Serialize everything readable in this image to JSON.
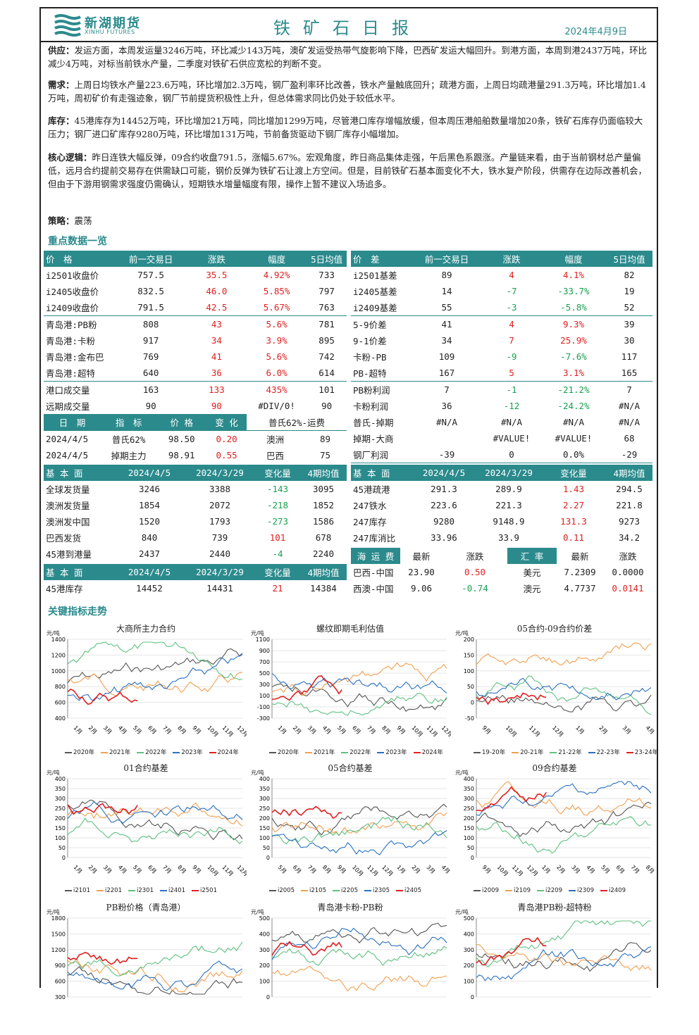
{
  "header": {
    "logo_cn": "新湖期货",
    "logo_en": "XINHU FUTURES",
    "title": "铁矿石日报",
    "date": "2024年4月9日"
  },
  "text": {
    "supply_label": "供应：",
    "supply": "发运方面，本周发运量3246万吨，环比减少143万吨，澳矿发运受热带气旋影响下降，巴西矿发运大幅回升。到港方面，本周到港2437万吨，环比减少4万吨，对标当前铁水产量，二季度对铁矿石供应宽松的判断不变。",
    "demand_label": "需求：",
    "demand": "上周日均铁水产量223.6万吨，环比增加2.3万吨，钢厂盈利率环比改善，铁水产量触底回升；疏港方面，上周日均疏港量291.3万吨，环比增加1.4万吨，周初矿价有走强迹象，钢厂节前提货积极性上升，但总体需求同比仍处于较低水平。",
    "stock_label": "库存：",
    "stock": "45港库存为14452万吨，环比增加21万吨，同比增加1299万吨，尽管港口库存增幅放缓，但本周压港船舶数量增加20条，铁矿石库存仍面临较大压力；钢厂进口矿库存9280万吨，环比增加131万吨，节前备货驱动下钢厂库存小幅增加。",
    "logic_label": "核心逻辑：",
    "logic": "昨日连铁大幅反弹，09合约收盘791.5，涨幅5.67%。宏观角度，昨日商品集体走强，午后黑色系跟涨。产量链来看，由于当前钢材总产量偏低，远月合约提前交易存在供需缺口可能，钢价反弹为铁矿石让渡上方空间。但是，目前铁矿石基本面变化不大，铁水复产阶段，供需存在边际改善机会，但由于下游用钢需求强度仍需确认，短期铁水增量幅度有限，操作上暂不建议入场追多。",
    "strategy_label": "策略：",
    "strategy": "震荡",
    "sec_data": "重点数据一览",
    "sec_chart": "关键指标走势"
  },
  "price_table": {
    "header": [
      "价　格",
      "前一交易日",
      "涨跌",
      "幅度",
      "5日均值"
    ],
    "rows": [
      [
        "i2501收盘价",
        "757.5",
        "35.5",
        "4.92%",
        "733"
      ],
      [
        "i2405收盘价",
        "832.5",
        "46.0",
        "5.85%",
        "797"
      ],
      [
        "i2409收盘价",
        "791.5",
        "42.5",
        "5.67%",
        "763"
      ],
      [
        "青岛港:PB粉",
        "808",
        "43",
        "5.6%",
        "781"
      ],
      [
        "青岛港:卡粉",
        "917",
        "34",
        "3.9%",
        "895"
      ],
      [
        "青岛港:金布巴",
        "769",
        "41",
        "5.6%",
        "742"
      ],
      [
        "青岛港:超特",
        "640",
        "36",
        "6.0%",
        "614"
      ],
      [
        "港口成交量",
        "163",
        "133",
        "435%",
        "101"
      ],
      [
        "远期成交量",
        "90",
        "90",
        "#DIV/0!",
        "90"
      ]
    ]
  },
  "spread_table": {
    "header": [
      "价　差",
      "前一交易日",
      "涨跌",
      "幅度",
      "5日均值"
    ],
    "rows": [
      [
        "i2501基差",
        "89",
        "4",
        "4.1%",
        "82"
      ],
      [
        "i2405基差",
        "14",
        "-7",
        "-33.7%",
        "19"
      ],
      [
        "i2409基差",
        "55",
        "-3",
        "-5.8%",
        "52"
      ],
      [
        "5-9价差",
        "41",
        "4",
        "9.3%",
        "39"
      ],
      [
        "9-1价差",
        "34",
        "7",
        "25.9%",
        "30"
      ],
      [
        "卡粉-PB",
        "109",
        "-9",
        "-7.6%",
        "117"
      ],
      [
        "PB-超特",
        "167",
        "5",
        "3.1%",
        "165"
      ],
      [
        "PB粉利润",
        "7",
        "-1",
        "-21.2%",
        "7"
      ],
      [
        "卡粉利润",
        "36",
        "-12",
        "-24.2%",
        "#N/A"
      ]
    ]
  },
  "index_table": {
    "header": [
      "日　期",
      "指　标",
      "价 格",
      "变 化",
      "普氏62%-运费"
    ],
    "rows": [
      [
        "2024/4/5",
        "普氏62%",
        "98.50",
        "0.20",
        "澳洲",
        "89"
      ],
      [
        "2024/4/5",
        "掉期主力",
        "98.91",
        "0.55",
        "巴西",
        "75"
      ]
    ]
  },
  "misc_rows": [
    [
      "普氏-掉期",
      "#N/A",
      "#N/A",
      "#N/A",
      "#N/A"
    ],
    [
      "掉期-大商",
      "",
      "#VALUE!",
      "#VALUE!",
      "68"
    ],
    [
      "钢厂利润",
      "-39",
      "0",
      "0.0%",
      "-29"
    ]
  ],
  "fund_left": {
    "header": [
      "基 本 面",
      "2024/4/5",
      "2024/3/29",
      "变化量",
      "4期均值"
    ],
    "rows": [
      [
        "全球发货量",
        "3246",
        "3388",
        "-143",
        "3095"
      ],
      [
        "澳洲发货量",
        "1854",
        "2072",
        "-218",
        "1852"
      ],
      [
        "澳洲发中国",
        "1520",
        "1793",
        "-273",
        "1586"
      ],
      [
        "巴西发货",
        "840",
        "739",
        "101",
        "678"
      ],
      [
        "45港到港量",
        "2437",
        "2440",
        "-4",
        "2240"
      ]
    ]
  },
  "fund_right": {
    "header": [
      "基 本 面",
      "2024/4/5",
      "2024/3/29",
      "变化量",
      "4期均值"
    ],
    "rows": [
      [
        "45港疏港",
        "291.3",
        "289.9",
        "1.43",
        "294.5"
      ],
      [
        "247铁水",
        "223.6",
        "221.3",
        "2.27",
        "221.8"
      ],
      [
        "247库存",
        "9280",
        "9148.9",
        "131.3",
        "9273"
      ],
      [
        "247库消比",
        "33.96",
        "33.9",
        "0.11",
        "34.2"
      ]
    ]
  },
  "fund_stock": {
    "header": [
      "基 本 面",
      "2024/4/5",
      "2024/3/29",
      "变化量",
      "4期均值"
    ],
    "row": [
      "45港库存",
      "14452",
      "14431",
      "21",
      "14384"
    ]
  },
  "freight": {
    "header": [
      "海 运 费",
      "最新",
      "涨跌"
    ],
    "rows": [
      [
        "巴西-中国",
        "23.90",
        "0.50"
      ],
      [
        "西澳-中国",
        "9.06",
        "-0.74"
      ]
    ]
  },
  "fx": {
    "header": [
      "汇 率",
      "最新",
      "涨跌"
    ],
    "rows": [
      [
        "美元",
        "7.2309",
        "0.0000"
      ],
      [
        "澳元",
        "4.7737",
        "0.0141"
      ]
    ]
  },
  "chart_data": [
    {
      "type": "line",
      "title": "大商所主力合约",
      "unit": "元/吨",
      "ylim": [
        400,
        1400
      ],
      "yticks": [
        "1400",
        "1200",
        "1000",
        "800",
        "600",
        "400"
      ],
      "xticks": [
        "1月",
        "2月",
        "3月",
        "4月",
        "5月",
        "6月",
        "7月",
        "8月",
        "9月",
        "10月",
        "11月",
        "12月"
      ],
      "legend": [
        "2020年",
        "2021年",
        "2022年",
        "2023年",
        "2024年"
      ]
    },
    {
      "type": "line",
      "title": "螺纹即期毛利估值",
      "unit": "元/吨",
      "ylim": [
        -300,
        1100
      ],
      "yticks": [
        "1100",
        "900",
        "700",
        "500",
        "300",
        "100",
        "-100",
        "-300"
      ],
      "xticks": [
        "1月",
        "2月",
        "3月",
        "4月",
        "5月",
        "6月",
        "7月",
        "8月",
        "9月",
        "10月",
        "11月",
        "12月"
      ],
      "legend": [
        "2020年",
        "2021年",
        "2022年",
        "2023年",
        "2024年"
      ]
    },
    {
      "type": "line",
      "title": "05合约-09合约价差",
      "unit": "元/吨",
      "ylim": [
        -50,
        200
      ],
      "yticks": [
        "200",
        "150",
        "100",
        "50",
        "0",
        "-50"
      ],
      "xticks": [
        "9月",
        "10月",
        "11月",
        "12月",
        "1月",
        "2月",
        "3月",
        "4月"
      ],
      "legend": [
        "19-20年",
        "20-21年",
        "21-22年",
        "22-23年",
        "23-24年"
      ]
    },
    {
      "type": "line",
      "title": "01合约基差",
      "unit": "元/吨",
      "ylim": [
        0,
        400
      ],
      "yticks": [
        "400",
        "350",
        "300",
        "250",
        "200",
        "150",
        "100",
        "50",
        "0"
      ],
      "xticks": [
        "1月",
        "2月",
        "3月",
        "4月",
        "5月",
        "6月",
        "7月",
        "8月",
        "9月",
        "10月",
        "11月",
        "12月"
      ],
      "legend": [
        "i2101",
        "i2201",
        "i2301",
        "i2401",
        "i2501"
      ]
    },
    {
      "type": "line",
      "title": "05合约基差",
      "unit": "元/吨",
      "ylim": [
        0,
        400
      ],
      "yticks": [
        "400",
        "350",
        "300",
        "250",
        "200",
        "150",
        "100",
        "50",
        "0"
      ],
      "xticks": [
        "5月",
        "6月",
        "7月",
        "8月",
        "9月",
        "10月",
        "11月",
        "12月",
        "1月",
        "2月",
        "3月",
        "4月"
      ],
      "legend": [
        "i2005",
        "i2105",
        "i2205",
        "i2305",
        "i2405"
      ]
    },
    {
      "type": "line",
      "title": "09合约基差",
      "unit": "元/吨",
      "ylim": [
        0,
        400
      ],
      "yticks": [
        "400",
        "350",
        "300",
        "250",
        "200",
        "150",
        "100",
        "50",
        "0"
      ],
      "xticks": [
        "9月",
        "10月",
        "11月",
        "12月",
        "1月",
        "2月",
        "3月",
        "4月",
        "5月",
        "6月",
        "7月",
        "8月"
      ],
      "legend": [
        "i2009",
        "i2109",
        "i2209",
        "i2309",
        "i2409"
      ]
    },
    {
      "type": "line",
      "title": "PB粉价格（青岛港）",
      "unit": "元/吨",
      "ylim": [
        300,
        1800
      ],
      "yticks": [
        "1800",
        "1500",
        "1200",
        "900",
        "600",
        "300"
      ],
      "xticks": [],
      "legend": []
    },
    {
      "type": "line",
      "title": "青岛港卡粉-PB粉",
      "unit": "元/吨",
      "ylim": [
        0,
        500
      ],
      "yticks": [
        "500",
        "400",
        "300",
        "200",
        "100",
        "0"
      ],
      "xticks": [],
      "legend": []
    },
    {
      "type": "line",
      "title": "青岛港PB粉-超特粉",
      "unit": "元/吨",
      "ylim": [
        0,
        500
      ],
      "yticks": [
        "500",
        "400",
        "300",
        "200",
        "100",
        "0"
      ],
      "xticks": [],
      "legend": []
    }
  ],
  "colors": {
    "accent": "#2b8a8c",
    "up": "#e02020",
    "down": "#1aa050",
    "series": [
      "#555555",
      "#f0a050",
      "#60c080",
      "#2a70c0",
      "#e02020"
    ]
  }
}
